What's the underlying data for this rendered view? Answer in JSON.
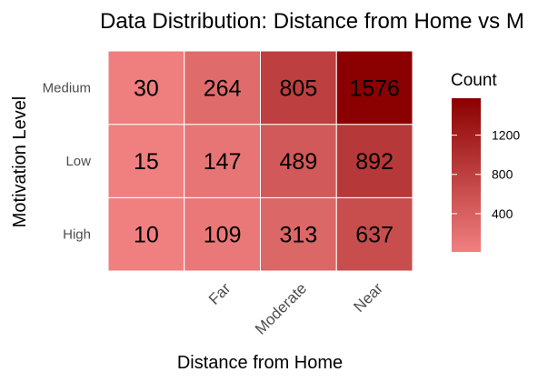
{
  "chart_data": {
    "type": "heatmap",
    "title": "Data Distribution: Distance from Home vs M",
    "xlabel": "Distance from Home",
    "ylabel": "Motivation Level",
    "x_categories": [
      "",
      "Far",
      "Moderate",
      "Near"
    ],
    "y_categories": [
      "High",
      "Low",
      "Medium"
    ],
    "values": [
      [
        10,
        109,
        313,
        637
      ],
      [
        15,
        147,
        489,
        892
      ],
      [
        30,
        264,
        805,
        1576
      ]
    ],
    "legend": {
      "title": "Count",
      "ticks": [
        400,
        800,
        1200
      ],
      "tick_labels": [
        "400",
        "800",
        "1200"
      ],
      "range": [
        10,
        1576
      ],
      "placement": "right"
    },
    "colors": {
      "low": "#f08080",
      "high": "#8b0000",
      "grid_line": "#ffffff"
    }
  }
}
